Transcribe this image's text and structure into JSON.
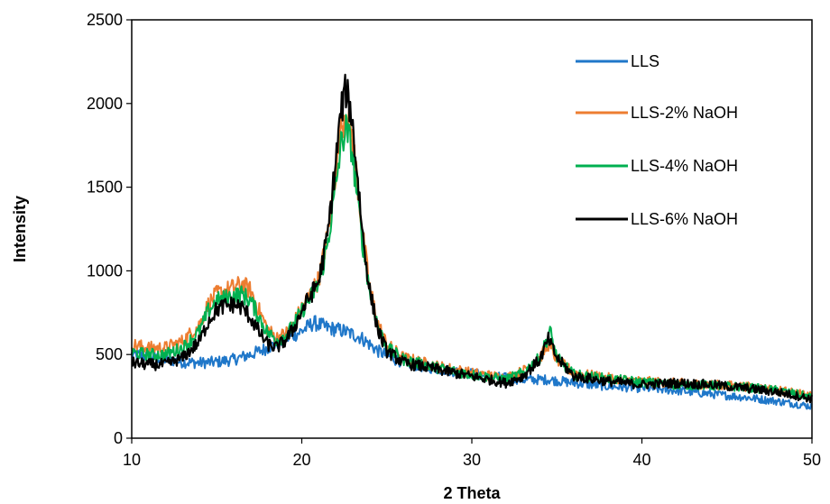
{
  "chart_data": {
    "type": "line",
    "xlabel": "2 Theta",
    "ylabel": "Intensity",
    "xlim": [
      10,
      50
    ],
    "ylim": [
      0,
      2500
    ],
    "x_ticks": [
      "10",
      "20",
      "30",
      "40",
      "50"
    ],
    "y_ticks": [
      "0",
      "500",
      "1000",
      "1500",
      "2000",
      "2500"
    ],
    "grid": false,
    "legend_position": "top-right",
    "series": [
      {
        "name": "LLS",
        "color": "#1f77c9",
        "points": [
          [
            10,
            500
          ],
          [
            11,
            490
          ],
          [
            12,
            470
          ],
          [
            13,
            455
          ],
          [
            14,
            450
          ],
          [
            15,
            455
          ],
          [
            16,
            470
          ],
          [
            17,
            500
          ],
          [
            18,
            540
          ],
          [
            19,
            590
          ],
          [
            20,
            640
          ],
          [
            20.7,
            690
          ],
          [
            21.5,
            660
          ],
          [
            22.5,
            640
          ],
          [
            23.5,
            600
          ],
          [
            24.5,
            520
          ],
          [
            25.5,
            470
          ],
          [
            27,
            430
          ],
          [
            29,
            400
          ],
          [
            31,
            370
          ],
          [
            33,
            350
          ],
          [
            34.5,
            350
          ],
          [
            36,
            330
          ],
          [
            38,
            310
          ],
          [
            40,
            300
          ],
          [
            42,
            285
          ],
          [
            44,
            265
          ],
          [
            46,
            245
          ],
          [
            48,
            220
          ],
          [
            50,
            190
          ]
        ]
      },
      {
        "name": "LLS-2% NaOH",
        "color": "#ed7d31",
        "points": [
          [
            10,
            560
          ],
          [
            11,
            540
          ],
          [
            12,
            540
          ],
          [
            13,
            580
          ],
          [
            14,
            680
          ],
          [
            14.5,
            800
          ],
          [
            15,
            860
          ],
          [
            16,
            900
          ],
          [
            16.5,
            920
          ],
          [
            17,
            880
          ],
          [
            17.5,
            760
          ],
          [
            18,
            650
          ],
          [
            18.5,
            600
          ],
          [
            19,
            620
          ],
          [
            19.5,
            680
          ],
          [
            20,
            780
          ],
          [
            20.5,
            860
          ],
          [
            21,
            950
          ],
          [
            21.5,
            1200
          ],
          [
            22,
            1600
          ],
          [
            22.3,
            1850
          ],
          [
            22.6,
            1960
          ],
          [
            22.9,
            1850
          ],
          [
            23.2,
            1600
          ],
          [
            23.6,
            1200
          ],
          [
            24,
            900
          ],
          [
            24.5,
            680
          ],
          [
            25,
            560
          ],
          [
            26,
            480
          ],
          [
            28,
            430
          ],
          [
            30,
            390
          ],
          [
            32,
            360
          ],
          [
            33,
            400
          ],
          [
            34,
            480
          ],
          [
            34.5,
            560
          ],
          [
            35,
            470
          ],
          [
            36,
            390
          ],
          [
            38,
            360
          ],
          [
            40,
            340
          ],
          [
            42,
            330
          ],
          [
            44,
            320
          ],
          [
            46,
            310
          ],
          [
            48,
            290
          ],
          [
            50,
            250
          ]
        ]
      },
      {
        "name": "LLS-4% NaOH",
        "color": "#00b050",
        "points": [
          [
            10,
            510
          ],
          [
            11,
            500
          ],
          [
            12,
            500
          ],
          [
            13,
            540
          ],
          [
            14,
            640
          ],
          [
            14.5,
            760
          ],
          [
            15,
            820
          ],
          [
            16,
            850
          ],
          [
            16.5,
            860
          ],
          [
            17,
            820
          ],
          [
            17.5,
            720
          ],
          [
            18,
            630
          ],
          [
            18.5,
            590
          ],
          [
            19,
            610
          ],
          [
            19.5,
            670
          ],
          [
            20,
            760
          ],
          [
            20.5,
            840
          ],
          [
            21,
            920
          ],
          [
            21.5,
            1150
          ],
          [
            22,
            1500
          ],
          [
            22.3,
            1750
          ],
          [
            22.6,
            1850
          ],
          [
            22.9,
            1750
          ],
          [
            23.2,
            1500
          ],
          [
            23.6,
            1150
          ],
          [
            24,
            880
          ],
          [
            24.5,
            660
          ],
          [
            25,
            540
          ],
          [
            26,
            470
          ],
          [
            28,
            420
          ],
          [
            30,
            380
          ],
          [
            32,
            350
          ],
          [
            33,
            390
          ],
          [
            34,
            480
          ],
          [
            34.6,
            640
          ],
          [
            35,
            480
          ],
          [
            36,
            380
          ],
          [
            38,
            355
          ],
          [
            40,
            335
          ],
          [
            42,
            320
          ],
          [
            44,
            315
          ],
          [
            46,
            305
          ],
          [
            48,
            285
          ],
          [
            50,
            245
          ]
        ]
      },
      {
        "name": "LLS-6% NaOH",
        "color": "#000000",
        "points": [
          [
            10,
            450
          ],
          [
            11,
            440
          ],
          [
            12,
            440
          ],
          [
            13,
            480
          ],
          [
            14,
            580
          ],
          [
            14.5,
            700
          ],
          [
            15,
            770
          ],
          [
            15.5,
            790
          ],
          [
            16,
            800
          ],
          [
            16.5,
            780
          ],
          [
            17,
            720
          ],
          [
            17.5,
            630
          ],
          [
            18,
            560
          ],
          [
            18.5,
            540
          ],
          [
            19,
            580
          ],
          [
            19.5,
            650
          ],
          [
            20,
            760
          ],
          [
            20.5,
            850
          ],
          [
            21,
            940
          ],
          [
            21.5,
            1200
          ],
          [
            22,
            1650
          ],
          [
            22.3,
            1950
          ],
          [
            22.6,
            2080
          ],
          [
            22.9,
            1950
          ],
          [
            23.2,
            1650
          ],
          [
            23.6,
            1200
          ],
          [
            24,
            880
          ],
          [
            24.5,
            640
          ],
          [
            25,
            520
          ],
          [
            26,
            450
          ],
          [
            28,
            410
          ],
          [
            30,
            370
          ],
          [
            32,
            330
          ],
          [
            33,
            370
          ],
          [
            34,
            470
          ],
          [
            34.5,
            590
          ],
          [
            35,
            480
          ],
          [
            36,
            370
          ],
          [
            38,
            340
          ],
          [
            40,
            320
          ],
          [
            42,
            330
          ],
          [
            44,
            320
          ],
          [
            46,
            300
          ],
          [
            48,
            275
          ],
          [
            50,
            235
          ]
        ]
      }
    ]
  }
}
